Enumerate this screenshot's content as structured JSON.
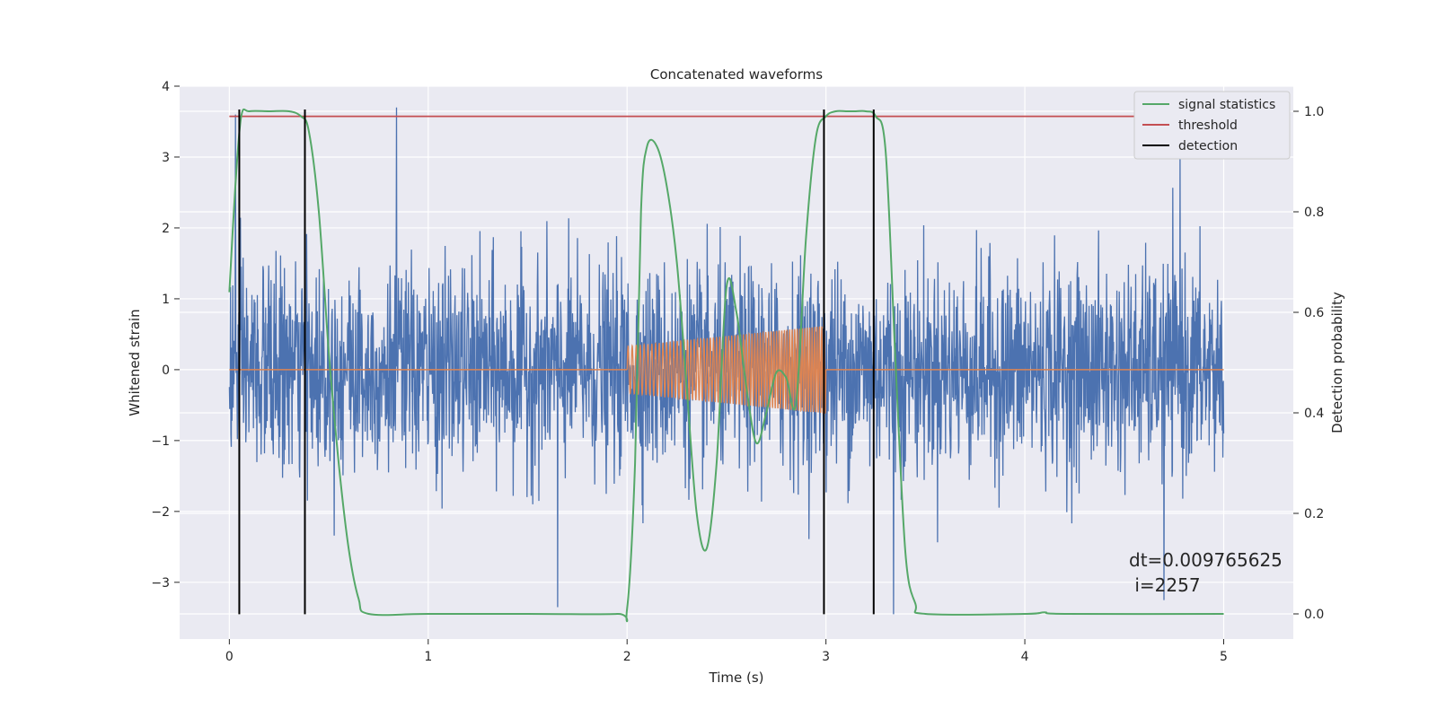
{
  "chart_data": {
    "type": "line",
    "title": "Concatenated waveforms",
    "xlabel": "Time (s)",
    "ylabel": "Whitened strain",
    "ylabel_right": "Detection probability",
    "xlim": [
      -0.25,
      5.35
    ],
    "ylim": [
      -3.8,
      4.0
    ],
    "ylim_right": [
      -0.05,
      1.05
    ],
    "xticks": [
      0,
      1,
      2,
      3,
      4,
      5
    ],
    "yticks": [
      -3,
      -2,
      -1,
      0,
      1,
      2,
      3,
      4
    ],
    "yticks_right": [
      0.0,
      0.2,
      0.4,
      0.6,
      0.8,
      1.0
    ],
    "xtick_labels": [
      "0",
      "1",
      "2",
      "3",
      "4",
      "5"
    ],
    "ytick_labels": [
      "−3",
      "−2",
      "−1",
      "0",
      "1",
      "2",
      "3",
      "4"
    ],
    "ytick_right_labels": [
      "0.0",
      "0.2",
      "0.4",
      "0.6",
      "0.8",
      "1.0"
    ],
    "grid": true,
    "legend_position": "top-right",
    "colors": {
      "background": "#eaeaf2",
      "grid": "#ffffff",
      "strain": "#4c72b0",
      "template": "#dd8452",
      "signal_statistics": "#55a868",
      "threshold": "#c44e52",
      "detection": "#000000"
    },
    "series": [
      {
        "name": "signal statistics",
        "axis": "right",
        "x": [
          0.0,
          0.03,
          0.06,
          0.1,
          0.2,
          0.3,
          0.36,
          0.4,
          0.45,
          0.5,
          0.55,
          0.6,
          0.65,
          0.7,
          1.0,
          1.5,
          1.95,
          2.0,
          2.04,
          2.07,
          2.1,
          2.15,
          2.2,
          2.25,
          2.3,
          2.35,
          2.4,
          2.45,
          2.5,
          2.55,
          2.6,
          2.65,
          2.7,
          2.75,
          2.8,
          2.85,
          2.9,
          2.95,
          3.0,
          3.05,
          3.1,
          3.15,
          3.2,
          3.25,
          3.3,
          3.35,
          3.4,
          3.45,
          3.5,
          4.0,
          4.1,
          4.2,
          5.0
        ],
        "values": [
          0.64,
          0.85,
          0.99,
          1.0,
          1.0,
          1.0,
          0.99,
          0.96,
          0.8,
          0.52,
          0.3,
          0.13,
          0.03,
          0.0,
          0.0,
          0.0,
          0.0,
          0.01,
          0.3,
          0.8,
          0.93,
          0.93,
          0.85,
          0.7,
          0.45,
          0.2,
          0.13,
          0.3,
          0.65,
          0.6,
          0.45,
          0.34,
          0.4,
          0.48,
          0.47,
          0.42,
          0.75,
          0.95,
          0.99,
          1.0,
          1.0,
          1.0,
          1.0,
          0.99,
          0.92,
          0.5,
          0.12,
          0.02,
          0.0,
          0.0,
          0.003,
          0.0,
          0.0
        ]
      },
      {
        "name": "threshold",
        "axis": "right",
        "x": [
          0.0,
          5.0
        ],
        "values": [
          0.99,
          0.99
        ]
      }
    ],
    "strain_noise": {
      "x_range": [
        0.0,
        5.0
      ],
      "sigma": 0.72,
      "approx_extremes": [
        {
          "x": 0.03,
          "y": 3.6
        },
        {
          "x": 0.84,
          "y": 3.7
        },
        {
          "x": 1.65,
          "y": -3.35
        },
        {
          "x": 3.34,
          "y": -3.45
        },
        {
          "x": 4.7,
          "y": -3.25
        },
        {
          "x": 4.78,
          "y": 3.05
        }
      ]
    },
    "template_waveform": {
      "x_range": [
        2.0,
        3.0
      ],
      "amplitude_start": 0.33,
      "amplitude_end": 0.62,
      "baseline": 0.0
    },
    "detections": [
      0.05,
      0.38,
      2.99,
      3.24
    ],
    "detection_y_range": [
      -3.45,
      3.67
    ],
    "legend": [
      {
        "label": "signal statistics",
        "color": "#55a868"
      },
      {
        "label": "threshold",
        "color": "#c44e52"
      },
      {
        "label": "detection",
        "color": "#000000"
      }
    ],
    "annotation": {
      "line1": "dt=0.009765625",
      "line2": " i=2257"
    }
  }
}
